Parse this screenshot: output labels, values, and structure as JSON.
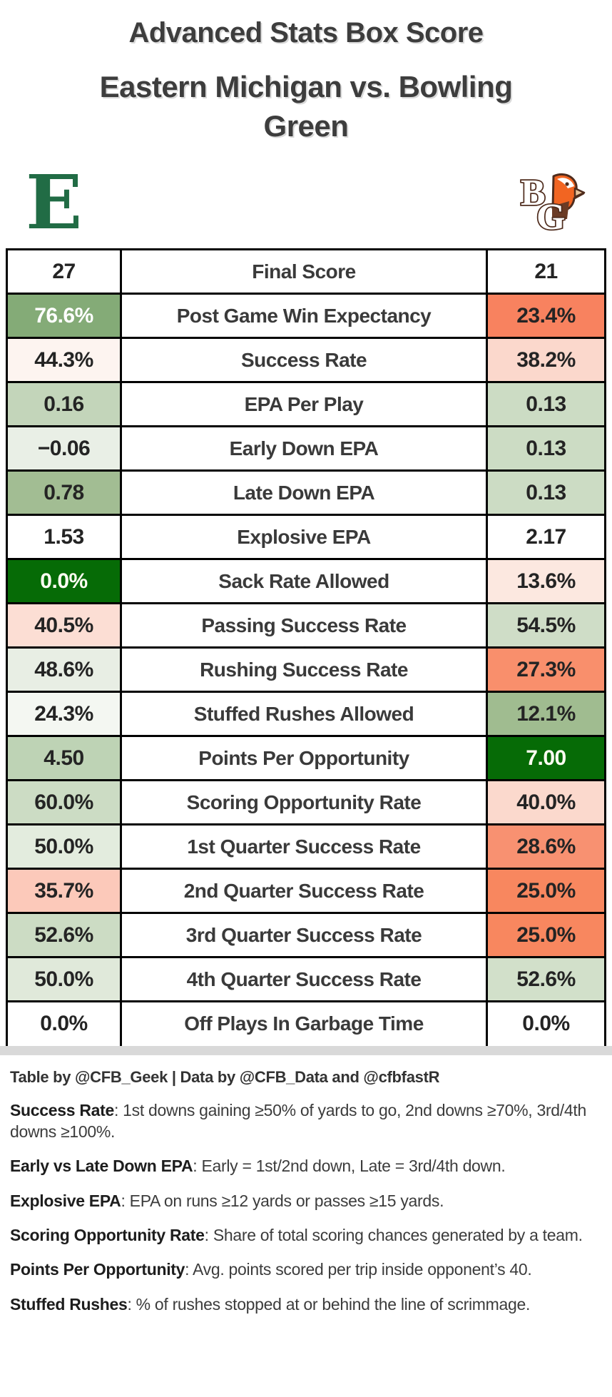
{
  "header": {
    "title_line1": "Advanced Stats Box Score",
    "title_line2": "Eastern Michigan vs. Bowling Green"
  },
  "teams": {
    "home": {
      "name": "Eastern Michigan",
      "logo_letter": "E",
      "logo_color": "#216c45"
    },
    "away": {
      "name": "Bowling Green",
      "logo_letters": [
        "B",
        "G"
      ],
      "logo_orange": "#f26522",
      "logo_brown": "#4f2c1d",
      "logo_beak": "#e8c39a"
    }
  },
  "chart_data": {
    "type": "table",
    "title": "Advanced Stats Box Score — Eastern Michigan vs. Bowling Green",
    "metrics": [
      "Final Score",
      "Post Game Win Expectancy",
      "Success Rate",
      "EPA Per Play",
      "Early Down EPA",
      "Late Down EPA",
      "Explosive EPA",
      "Sack Rate Allowed",
      "Passing Success Rate",
      "Rushing Success Rate",
      "Stuffed Rushes Allowed",
      "Points Per Opportunity",
      "Scoring Opportunity Rate",
      "1st Quarter Success Rate",
      "2nd Quarter Success Rate",
      "3rd Quarter Success Rate",
      "4th Quarter Success Rate",
      "Off Plays In Garbage Time"
    ],
    "series": [
      {
        "name": "Eastern Michigan",
        "values": [
          "27",
          "76.6%",
          "44.3%",
          "0.16",
          "−0.06",
          "0.78",
          "1.53",
          "0.0%",
          "40.5%",
          "48.6%",
          "24.3%",
          "4.50",
          "60.0%",
          "50.0%",
          "35.7%",
          "52.6%",
          "50.0%",
          "0.0%"
        ]
      },
      {
        "name": "Bowling Green",
        "values": [
          "21",
          "23.4%",
          "38.2%",
          "0.13",
          "0.13",
          "0.13",
          "2.17",
          "13.6%",
          "54.5%",
          "27.3%",
          "12.1%",
          "7.00",
          "40.0%",
          "28.6%",
          "25.0%",
          "25.0%",
          "52.6%",
          "0.0%"
        ]
      }
    ]
  },
  "table": {
    "rows": [
      {
        "label": "Final Score",
        "left": "27",
        "right": "21",
        "left_bg": "#ffffff",
        "right_bg": "#ffffff"
      },
      {
        "label": "Post Game Win Expectancy",
        "left": "76.6%",
        "right": "23.4%",
        "left_bg": "#84ab77",
        "left_fg": "#ffffff",
        "right_bg": "#f8825f"
      },
      {
        "label": "Success Rate",
        "left": "44.3%",
        "right": "38.2%",
        "left_bg": "#fdf4f0",
        "right_bg": "#fbd8cc"
      },
      {
        "label": "EPA Per Play",
        "left": "0.16",
        "right": "0.13",
        "left_bg": "#c3d5ba",
        "right_bg": "#ccdcc4"
      },
      {
        "label": "Early Down EPA",
        "left": "−0.06",
        "right": "0.13",
        "left_bg": "#e9efe6",
        "right_bg": "#ccdcc4"
      },
      {
        "label": "Late Down EPA",
        "left": "0.78",
        "right": "0.13",
        "left_bg": "#a2bd93",
        "right_bg": "#ccdcc4"
      },
      {
        "label": "Explosive EPA",
        "left": "1.53",
        "right": "2.17",
        "left_bg": "#ffffff",
        "right_bg": "#ffffff"
      },
      {
        "label": "Sack Rate Allowed",
        "left": "0.0%",
        "right": "13.6%",
        "left_bg": "#066b06",
        "left_fg": "#fffdf2",
        "right_bg": "#fce8e0"
      },
      {
        "label": "Passing Success Rate",
        "left": "40.5%",
        "right": "54.5%",
        "left_bg": "#fcded4",
        "right_bg": "#cfddc7"
      },
      {
        "label": "Rushing Success Rate",
        "left": "48.6%",
        "right": "27.3%",
        "left_bg": "#e8eee4",
        "right_bg": "#f98f6c"
      },
      {
        "label": "Stuffed Rushes Allowed",
        "left": "24.3%",
        "right": "12.1%",
        "left_bg": "#f4f7f2",
        "right_bg": "#a0bc90"
      },
      {
        "label": "Points Per Opportunity",
        "left": "4.50",
        "right": "7.00",
        "left_bg": "#bed3b5",
        "right_bg": "#066b06",
        "right_fg": "#fffdf2"
      },
      {
        "label": "Scoring Opportunity Rate",
        "left": "60.0%",
        "right": "40.0%",
        "left_bg": "#ccdcc4",
        "right_bg": "#fbd9cd"
      },
      {
        "label": "1st Quarter Success Rate",
        "left": "50.0%",
        "right": "28.6%",
        "left_bg": "#e3ecde",
        "right_bg": "#f89171"
      },
      {
        "label": "2nd Quarter Success Rate",
        "left": "35.7%",
        "right": "25.0%",
        "left_bg": "#fcc9ba",
        "right_bg": "#f8875f"
      },
      {
        "label": "3rd Quarter Success Rate",
        "left": "52.6%",
        "right": "25.0%",
        "left_bg": "#ccdcc4",
        "right_bg": "#f8875f"
      },
      {
        "label": "4th Quarter Success Rate",
        "left": "50.0%",
        "right": "52.6%",
        "left_bg": "#e0e9da",
        "right_bg": "#d2e0ca"
      },
      {
        "label": "Off Plays In Garbage Time",
        "left": "0.0%",
        "right": "0.0%",
        "left_bg": "#ffffff",
        "right_bg": "#ffffff"
      }
    ]
  },
  "footer": {
    "credit": "Table by @CFB_Geek | Data by @CFB_Data and @cfbfastR",
    "notes": [
      {
        "term": "Success Rate",
        "text": ": 1st downs gaining ≥50% of yards to go, 2nd downs ≥70%, 3rd/4th downs ≥100%."
      },
      {
        "term": "Early vs Late Down EPA",
        "text": ": Early = 1st/2nd down, Late = 3rd/4th down."
      },
      {
        "term": "Explosive EPA",
        "text": ": EPA on runs ≥12 yards or passes ≥15 yards."
      },
      {
        "term": "Scoring Opportunity Rate",
        "text": ": Share of total scoring chances generated by a team."
      },
      {
        "term": "Points Per Opportunity",
        "text": ": Avg. points scored per trip inside opponent’s 40."
      },
      {
        "term": "Stuffed Rushes",
        "text": ": % of rushes stopped at or behind the line of scrimmage."
      }
    ]
  }
}
